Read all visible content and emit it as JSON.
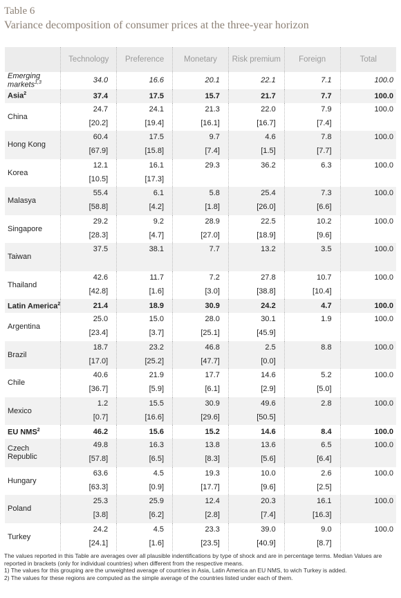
{
  "header": {
    "title": "Table 6",
    "subtitle": "Variance decomposition of consumer prices at the three-year horizon"
  },
  "table": {
    "columns": [
      "Technology",
      "Preference",
      "Monetary",
      "Risk premium",
      "Foreign",
      "Total"
    ],
    "rows": [
      {
        "label": "Emerging markets",
        "sup": "1,3",
        "style": "italic",
        "values": [
          "34.0",
          "16.6",
          "20.1",
          "22.1",
          "7.1",
          "100.0"
        ]
      },
      {
        "label": "Asia",
        "sup": "2",
        "style": "bold",
        "values": [
          "37.4",
          "17.5",
          "15.7",
          "21.7",
          "7.7",
          "100.0"
        ]
      },
      {
        "label": "China",
        "values": [
          "24.7",
          "24.1",
          "21.3",
          "22.0",
          "7.9",
          "100.0"
        ],
        "medians": [
          "[20.2]",
          "[19.4]",
          "[16.1]",
          "[16.7]",
          "[7.4]"
        ]
      },
      {
        "label": "Hong Kong",
        "values": [
          "60.4",
          "17.5",
          "9.7",
          "4.6",
          "7.8",
          "100.0"
        ],
        "medians": [
          "[67.9]",
          "[15.8]",
          "[7.4]",
          "[1.5]",
          "[7.7]"
        ]
      },
      {
        "label": "Korea",
        "values": [
          "12.1",
          "16.1",
          "29.3",
          "36.2",
          "6.3",
          "100.0"
        ],
        "medians": [
          "[10.5]",
          "[17.3]",
          null,
          null,
          null
        ]
      },
      {
        "label": "Malasya",
        "values": [
          "55.4",
          "6.1",
          "5.8",
          "25.4",
          "7.3",
          "100.0"
        ],
        "medians": [
          "[58.8]",
          "[4.2]",
          "[1.8]",
          "[26.0]",
          "[6.6]"
        ]
      },
      {
        "label": "Singapore",
        "values": [
          "29.2",
          "9.2",
          "28.9",
          "22.5",
          "10.2",
          "100.0"
        ],
        "medians": [
          "[28.3]",
          "[4.7]",
          "[27.0]",
          "[18.9]",
          "[9.6]"
        ]
      },
      {
        "label": "Taiwan",
        "values": [
          "37.5",
          "38.1",
          "7.7",
          "13.2",
          "3.5",
          "100.0"
        ],
        "medians": [
          null,
          null,
          null,
          null,
          null
        ]
      },
      {
        "label": "Thailand",
        "values": [
          "42.6",
          "11.7",
          "7.2",
          "27.8",
          "10.7",
          "100.0"
        ],
        "medians": [
          "[42.8]",
          "[1.6]",
          "[3.0]",
          "[38.8]",
          "[10.4]"
        ]
      },
      {
        "label": "Latin America",
        "sup": "2",
        "style": "bold",
        "values": [
          "21.4",
          "18.9",
          "30.9",
          "24.2",
          "4.7",
          "100.0"
        ]
      },
      {
        "label": "Argentina",
        "values": [
          "25.0",
          "15.0",
          "28.0",
          "30.1",
          "1.9",
          "100.0"
        ],
        "medians": [
          "[23.4]",
          "[3.7]",
          "[25.1]",
          "[45.9]",
          null
        ]
      },
      {
        "label": "Brazil",
        "values": [
          "18.7",
          "23.2",
          "46.8",
          "2.5",
          "8.8",
          "100.0"
        ],
        "medians": [
          "[17.0]",
          "[25.2]",
          "[47.7]",
          "[0.0]",
          null
        ]
      },
      {
        "label": "Chile",
        "values": [
          "40.6",
          "21.9",
          "17.7",
          "14.6",
          "5.2",
          "100.0"
        ],
        "medians": [
          "[36.7]",
          "[5.9]",
          "[6.1]",
          "[2.9]",
          "[5.0]"
        ]
      },
      {
        "label": "Mexico",
        "values": [
          "1.2",
          "15.5",
          "30.9",
          "49.6",
          "2.8",
          "100.0"
        ],
        "medians": [
          "[0.7]",
          "[16.6]",
          "[29.6]",
          "[50.5]",
          null
        ]
      },
      {
        "label": "EU NMS",
        "sup": "2",
        "style": "bold",
        "values": [
          "46.2",
          "15.6",
          "15.2",
          "14.6",
          "8.4",
          "100.0"
        ]
      },
      {
        "label": "Czech Republic",
        "values": [
          "49.8",
          "16.3",
          "13.8",
          "13.6",
          "6.5",
          "100.0"
        ],
        "medians": [
          "[57.8]",
          "[6.5]",
          "[8.3]",
          "[5.6]",
          "[6.4]"
        ]
      },
      {
        "label": "Hungary",
        "values": [
          "63.6",
          "4.5",
          "19.3",
          "10.0",
          "2.6",
          "100.0"
        ],
        "medians": [
          "[63.3]",
          "[0.9]",
          "[17.7]",
          "[9.6]",
          "[2.5]"
        ]
      },
      {
        "label": "Poland",
        "values": [
          "25.3",
          "25.9",
          "12.4",
          "20.3",
          "16.1",
          "100.0"
        ],
        "medians": [
          "[3.8]",
          "[6.2]",
          "[2.8]",
          "[7.4]",
          "[16.3]"
        ]
      },
      {
        "label": "Turkey",
        "values": [
          "24.2",
          "4.5",
          "23.3",
          "39.0",
          "9.0",
          "100.0"
        ],
        "medians": [
          "[24.1]",
          "[1.6]",
          "[23.5]",
          "[40.9]",
          "[8.7]"
        ]
      }
    ]
  },
  "notes": [
    "The values reported in this Table are averages over all plausible indentifications by type of shock and are in percentage terms. Median Values are reported in brackets (only for individual countries) when different from the respective means.",
    "1) The values for this grouping are the unweighted average of countries in Asia, Latin America an EU NMS, to wich Turkey is added.",
    "2) The values for these regions are computed as the simple average of the countries listed under each of them."
  ]
}
